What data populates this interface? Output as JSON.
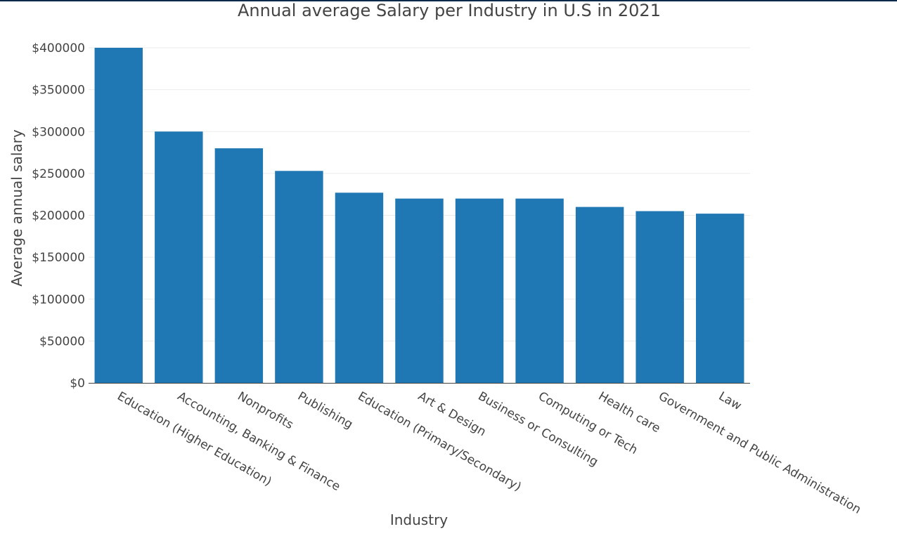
{
  "chart_data": {
    "type": "bar",
    "title": "Annual average Salary per Industry in U.S in 2021",
    "xlabel": "Industry",
    "ylabel": "Average annual salary",
    "ylim": [
      0,
      400000
    ],
    "ytick_values": [
      0,
      50000,
      100000,
      150000,
      200000,
      250000,
      300000,
      350000,
      400000
    ],
    "ytick_labels": [
      "$0",
      "$50000",
      "$100000",
      "$150000",
      "$200000",
      "$250000",
      "$300000",
      "$350000",
      "$400000"
    ],
    "grid": true,
    "bar_color": "#1f77b4",
    "categories": [
      "Education (Higher Education)",
      "Accounting, Banking & Finance",
      "Nonprofits",
      "Publishing",
      "Education (Primary/Secondary)",
      "Art & Design",
      "Business or Consulting",
      "Computing or Tech",
      "Health care",
      "Government and Public Administration",
      "Law"
    ],
    "values": [
      400000,
      300000,
      280000,
      253000,
      227000,
      220000,
      220000,
      220000,
      210000,
      205000,
      202000
    ]
  }
}
